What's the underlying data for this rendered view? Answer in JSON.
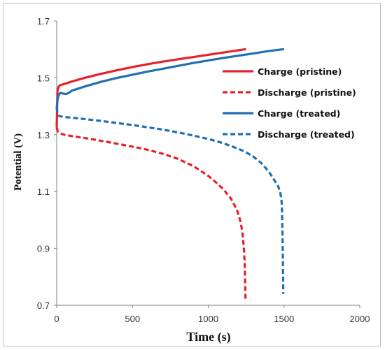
{
  "chart_data": {
    "type": "line",
    "xlabel": "Time (s)",
    "ylabel": "Potential (V)",
    "xlim": [
      0,
      2000
    ],
    "ylim": [
      0.7,
      1.7
    ],
    "xticks": [
      "0",
      "500",
      "1000",
      "1500",
      "2000"
    ],
    "yticks": [
      "0.7",
      "0.9",
      "1.1",
      "1.3",
      "1.5",
      "1.7"
    ],
    "grid": false,
    "legend_position": "right, upper-middle",
    "series": [
      {
        "name": "Charge (pristine)",
        "style": "solid",
        "color": "#e8202a",
        "x": [
          0,
          5,
          10,
          15,
          20,
          40,
          60,
          100,
          200,
          300,
          400,
          500,
          600,
          700,
          800,
          900,
          1000,
          1100,
          1200,
          1250
        ],
        "y": [
          1.325,
          1.455,
          1.465,
          1.47,
          1.473,
          1.477,
          1.48,
          1.487,
          1.502,
          1.515,
          1.527,
          1.538,
          1.548,
          1.557,
          1.565,
          1.573,
          1.581,
          1.589,
          1.597,
          1.601
        ]
      },
      {
        "name": "Discharge (pristine)",
        "style": "dashed",
        "color": "#e8202a",
        "x": [
          0,
          5,
          10,
          20,
          50,
          100,
          200,
          300,
          400,
          500,
          600,
          700,
          800,
          900,
          950,
          1000,
          1050,
          1100,
          1150,
          1190,
          1210,
          1225,
          1235,
          1240,
          1243,
          1245,
          1246
        ],
        "y": [
          1.325,
          1.315,
          1.31,
          1.305,
          1.3,
          1.295,
          1.287,
          1.278,
          1.268,
          1.258,
          1.247,
          1.233,
          1.215,
          1.19,
          1.173,
          1.155,
          1.133,
          1.108,
          1.075,
          1.035,
          1.0,
          0.96,
          0.9,
          0.85,
          0.8,
          0.75,
          0.72
        ]
      },
      {
        "name": "Charge (treated)",
        "style": "solid",
        "color": "#1f6fb4",
        "x": [
          0,
          5,
          10,
          20,
          30,
          40,
          60,
          80,
          100,
          200,
          300,
          400,
          500,
          600,
          700,
          800,
          900,
          1000,
          1100,
          1200,
          1300,
          1400,
          1500
        ],
        "y": [
          1.395,
          1.42,
          1.435,
          1.445,
          1.447,
          1.445,
          1.443,
          1.447,
          1.455,
          1.472,
          1.487,
          1.5,
          1.511,
          1.522,
          1.532,
          1.542,
          1.552,
          1.561,
          1.57,
          1.578,
          1.586,
          1.594,
          1.601
        ]
      },
      {
        "name": "Discharge (treated)",
        "style": "dashed",
        "color": "#1f6fb4",
        "x": [
          0,
          5,
          10,
          20,
          50,
          100,
          200,
          300,
          400,
          500,
          600,
          700,
          800,
          900,
          1000,
          1100,
          1200,
          1250,
          1300,
          1350,
          1400,
          1430,
          1460,
          1475,
          1485,
          1490,
          1493,
          1495
        ],
        "y": [
          1.395,
          1.375,
          1.368,
          1.365,
          1.362,
          1.36,
          1.354,
          1.348,
          1.341,
          1.334,
          1.326,
          1.318,
          1.308,
          1.297,
          1.285,
          1.27,
          1.25,
          1.238,
          1.222,
          1.2,
          1.17,
          1.145,
          1.12,
          1.1,
          1.06,
          0.95,
          0.85,
          0.74
        ]
      }
    ]
  }
}
